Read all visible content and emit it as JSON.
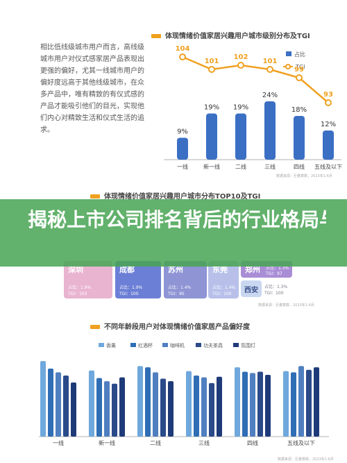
{
  "intro_text": "相比低线级城市用户而言，高线级城市用户对仪式感家居产品表现出更强的偏好，尤其一线城市用户的偏好度远高于其他线级城市，在众多产品中，唯有精致的有仪式感的产品才能吸引他们的目光，实现他们内心对精致生活和仪式生活的追求。",
  "banner_text": "揭秘上市公司排名背后的行业格局与未来趋势，深度统计报",
  "chart1": {
    "chart_data": {
      "type": "bar",
      "title": "体现情绪价值家居兴趣用户城市级别分布及TGI",
      "categories": [
        "一线",
        "新一线",
        "二线",
        "三线",
        "四线",
        "五线及以下"
      ],
      "series": [
        {
          "name": "占比",
          "values": [
            9,
            19,
            19,
            24,
            18,
            12
          ],
          "labels": [
            "9%",
            "19%",
            "19%",
            "24%",
            "18%",
            "12%"
          ]
        },
        {
          "name": "TGI",
          "type": "line",
          "values": [
            104,
            101,
            102,
            101,
            99,
            93
          ]
        }
      ],
      "legend": "top-right"
    },
    "source": "数据来源：巨量算数，2023年1-6月",
    "colors": {
      "bar": "#3a6fc4",
      "line": "#f0a020"
    }
  },
  "chart2": {
    "title": "体现情绪价值家居兴趣用户城市分布TOP10及TGI",
    "source": "数据来源：巨量算数，2023年1-6月",
    "cards": [
      {
        "city": "深圳",
        "share": "占比：1.9%",
        "tgi": "TGI：103",
        "color": "#e9b4d0"
      },
      {
        "city": "成都",
        "share": "占比：1.9%",
        "tgi": "TGI：100",
        "color": "#6c7fd6"
      },
      {
        "city": "苏州",
        "share": "占比：1.4%",
        "tgi": "TGI：95",
        "color": "#8e94d4"
      },
      {
        "city": "东莞",
        "share": "占比：1.4%",
        "tgi": "TGI：100",
        "color": "#b8c0ea"
      },
      {
        "city": "郑州",
        "share": "占比：1.3%",
        "tgi": "TGI：97",
        "color": "#a98ed6"
      },
      {
        "city": "西安",
        "share": "占比：1.3%",
        "tgi": "TGI：100",
        "color": "#c9d7f0"
      }
    ]
  },
  "chart3": {
    "chart_data": {
      "type": "bar",
      "title": "不同年龄段用户对体现情绪价值家居产品偏好度",
      "categories": [
        "一线",
        "新一线",
        "二线",
        "三线",
        "四线",
        "五线及以下"
      ],
      "series": [
        {
          "name": "香薰",
          "values": [
            120,
            105,
            112,
            104,
            110,
            104
          ]
        },
        {
          "name": "红酒杯",
          "values": [
            108,
            93,
            110,
            97,
            103,
            102
          ]
        },
        {
          "name": "咖啡机",
          "values": [
            102,
            88,
            102,
            94,
            101,
            112
          ]
        },
        {
          "name": "功夫茶具",
          "values": [
            97,
            84,
            92,
            85,
            103,
            106
          ]
        },
        {
          "name": "氛围灯",
          "values": [
            86,
            94,
            88,
            95,
            98,
            110
          ]
        }
      ],
      "ylim": [
        0,
        130
      ],
      "legend": "top"
    },
    "colors": [
      "#6fa8dc",
      "#2f6db5",
      "#4f7fc0",
      "#2a4a8a",
      "#1f3a78"
    ],
    "source": "数据来源：巨量算数，2023年1-6月"
  }
}
